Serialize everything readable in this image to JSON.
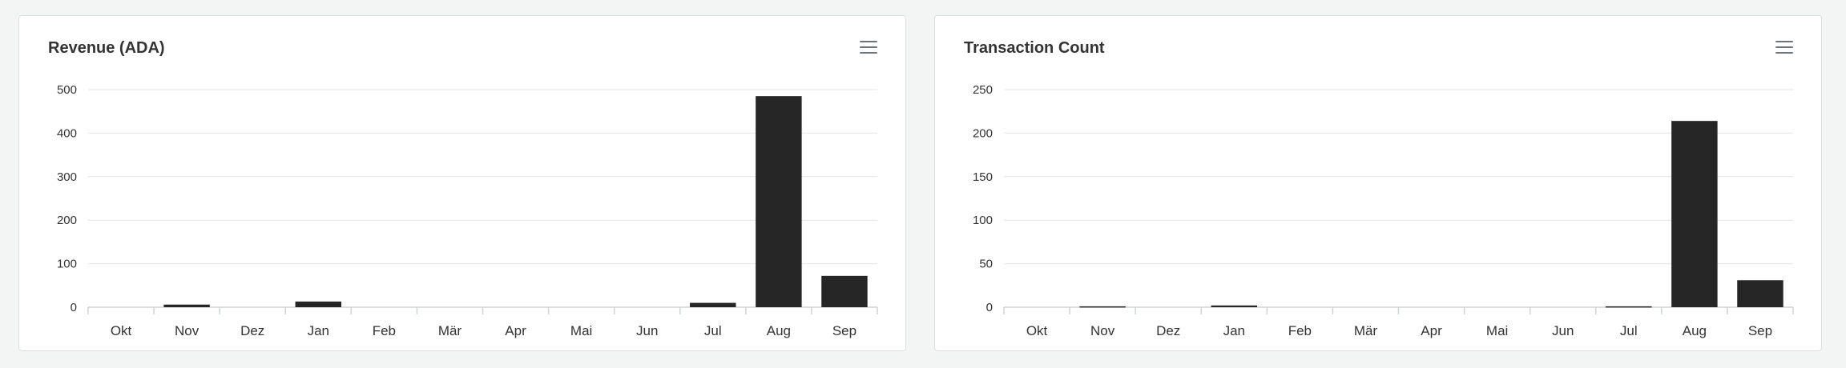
{
  "charts": [
    {
      "title": "Revenue (ADA)",
      "menu_icon": "hamburger-menu-icon"
    },
    {
      "title": "Transaction Count",
      "menu_icon": "hamburger-menu-icon"
    }
  ],
  "chart_data": [
    {
      "type": "bar",
      "title": "Revenue (ADA)",
      "categories": [
        "Okt",
        "Nov",
        "Dez",
        "Jan",
        "Feb",
        "Mär",
        "Apr",
        "Mai",
        "Jun",
        "Jul",
        "Aug",
        "Sep"
      ],
      "values": [
        0,
        6,
        0,
        13,
        0,
        0,
        0,
        0,
        0,
        10,
        485,
        72
      ],
      "ylim": [
        0,
        500
      ],
      "yticks": [
        0,
        100,
        200,
        300,
        400,
        500
      ],
      "xlabel": "",
      "ylabel": "",
      "grid": true,
      "legend": "none",
      "bar_color": "#262626"
    },
    {
      "type": "bar",
      "title": "Transaction Count",
      "categories": [
        "Okt",
        "Nov",
        "Dez",
        "Jan",
        "Feb",
        "Mär",
        "Apr",
        "Mai",
        "Jun",
        "Jul",
        "Aug",
        "Sep"
      ],
      "values": [
        0,
        1,
        0,
        2,
        0,
        0,
        0,
        0,
        0,
        1,
        214,
        31
      ],
      "ylim": [
        0,
        250
      ],
      "yticks": [
        0,
        50,
        100,
        150,
        200,
        250
      ],
      "xlabel": "",
      "ylabel": "",
      "grid": true,
      "legend": "none",
      "bar_color": "#262626"
    }
  ]
}
